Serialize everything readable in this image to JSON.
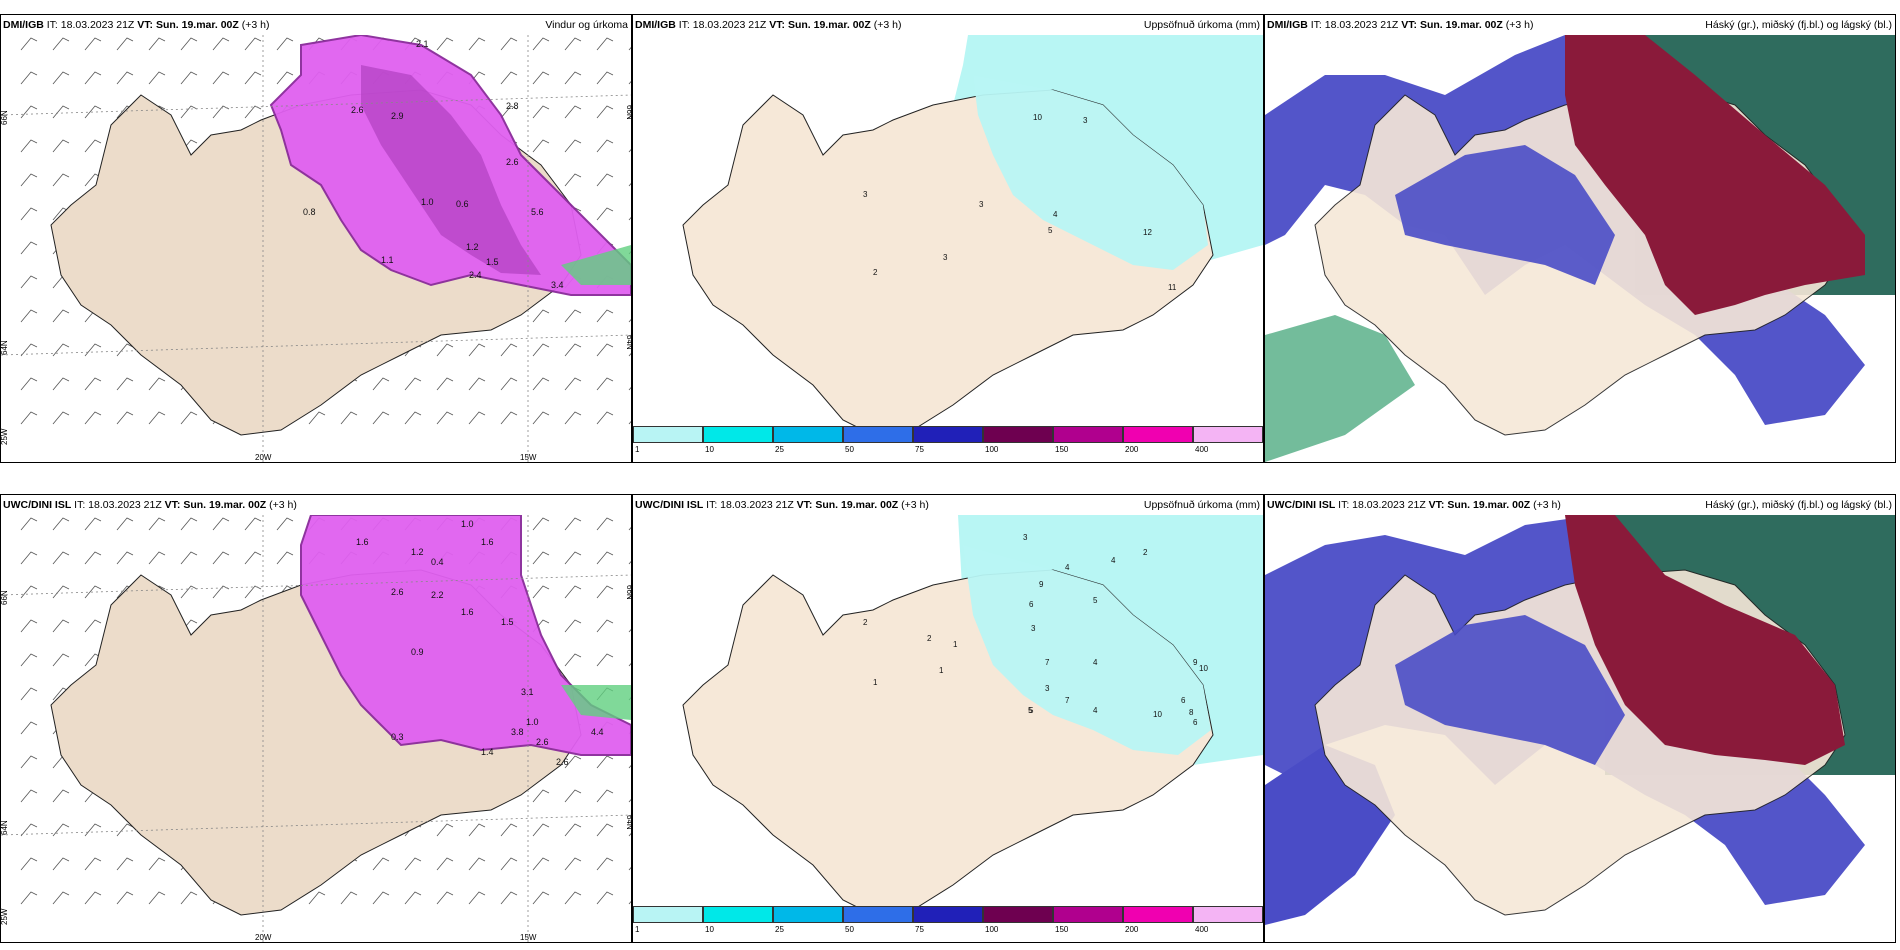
{
  "rows": [
    {
      "model": "DMI/IGB",
      "panels": [
        {
          "id": "wind",
          "model": "DMI/IGB",
          "it": "IT: 18.03.2023 21Z",
          "vt_label": "VT:",
          "vt": "Sun. 19.mar. 00Z",
          "lead": "(+3 h)",
          "title": "Vindur og úrkoma"
        },
        {
          "id": "accum",
          "model": "DMI/IGB",
          "it": "IT: 18.03.2023 21Z",
          "vt_label": "VT:",
          "vt": "Sun. 19.mar. 00Z",
          "lead": "(+3 h)",
          "title": "Uppsöfnuð úrkoma (mm)"
        },
        {
          "id": "cloud",
          "model": "DMI/IGB",
          "it": "IT: 18.03.2023 21Z",
          "vt_label": "VT:",
          "vt": "Sun. 19.mar. 00Z",
          "lead": "(+3 h)",
          "title": "Háský (gr.), miðský (fj.bl.) og lágský (bl.)"
        }
      ]
    },
    {
      "model": "UWC/DINI ISL",
      "panels": [
        {
          "id": "wind",
          "model": "UWC/DINI ISL",
          "it": "IT: 18.03.2023 21Z",
          "vt_label": "VT:",
          "vt": "Sun. 19.mar. 00Z",
          "lead": "(+3 h)",
          "title": ""
        },
        {
          "id": "accum",
          "model": "UWC/DINI ISL",
          "it": "IT: 18.03.2023 21Z",
          "vt_label": "VT:",
          "vt": "Sun. 19.mar. 00Z",
          "lead": "(+3 h)",
          "title": "Uppsöfnuð úrkoma (mm)"
        },
        {
          "id": "cloud",
          "model": "UWC/DINI ISL",
          "it": "IT: 18.03.2023 21Z",
          "vt_label": "VT:",
          "vt": "Sun. 19.mar. 00Z",
          "lead": "(+3 h)",
          "title": "Háský (gr.), miðský (fj.bl.) og lágský (bl.)"
        }
      ]
    }
  ],
  "axis_labels": {
    "lat66": "66N",
    "lat64": "64N",
    "lon20": "20W",
    "lon15": "15W",
    "lat25": "25W"
  },
  "colorbar": {
    "ticks": [
      "1",
      "10",
      "25",
      "50",
      "75",
      "100",
      "150",
      "200",
      "400"
    ],
    "colors": [
      "#b8f4f4",
      "#00e8e8",
      "#00b8e8",
      "#2e6ee8",
      "#2020b8",
      "#6e0050",
      "#b0008e",
      "#f000b0",
      "#f4b4f4"
    ]
  },
  "wind_values_top": [
    "2.1",
    "2.6",
    "2.9",
    "2.8",
    "2.6",
    "1.0",
    "0.6",
    "1.2",
    "1.5",
    "5.6",
    "2.4",
    "3.4",
    "1.1",
    "0.8"
  ],
  "wind_values_bottom": [
    "1.0",
    "1.6",
    "1.2",
    "1.6",
    "0.4",
    "2.6",
    "2.2",
    "1.6",
    "0.9",
    "1.5",
    "3.1",
    "1.0",
    "3.8",
    "2.6",
    "1.4",
    "4.4",
    "0.3",
    "2.6"
  ],
  "accum_values_top": [
    "10",
    "3",
    "3",
    "3",
    "4",
    "5",
    "12",
    "2",
    "3",
    "11"
  ],
  "accum_values_bottom": [
    "3",
    "4",
    "4",
    "2",
    "9",
    "6",
    "5",
    "3",
    "7",
    "4",
    "3",
    "5",
    "4",
    "6",
    "8",
    "10",
    "6",
    "9",
    "10",
    "2",
    "1",
    "1",
    "1",
    "5",
    "7",
    "2"
  ],
  "colors": {
    "land": "#f6e8d8",
    "land_wind": "#ecdcca",
    "coast": "#222222",
    "wind_magenta": "#e060f0",
    "wind_dark": "#8a2a9a",
    "accum_cyan": "#b8f6f4",
    "cloud_high": "#8a1a3a",
    "cloud_mid": "#4a4cc6",
    "cloud_low": "#2f6c5e",
    "cloud_green": "#38a070"
  }
}
